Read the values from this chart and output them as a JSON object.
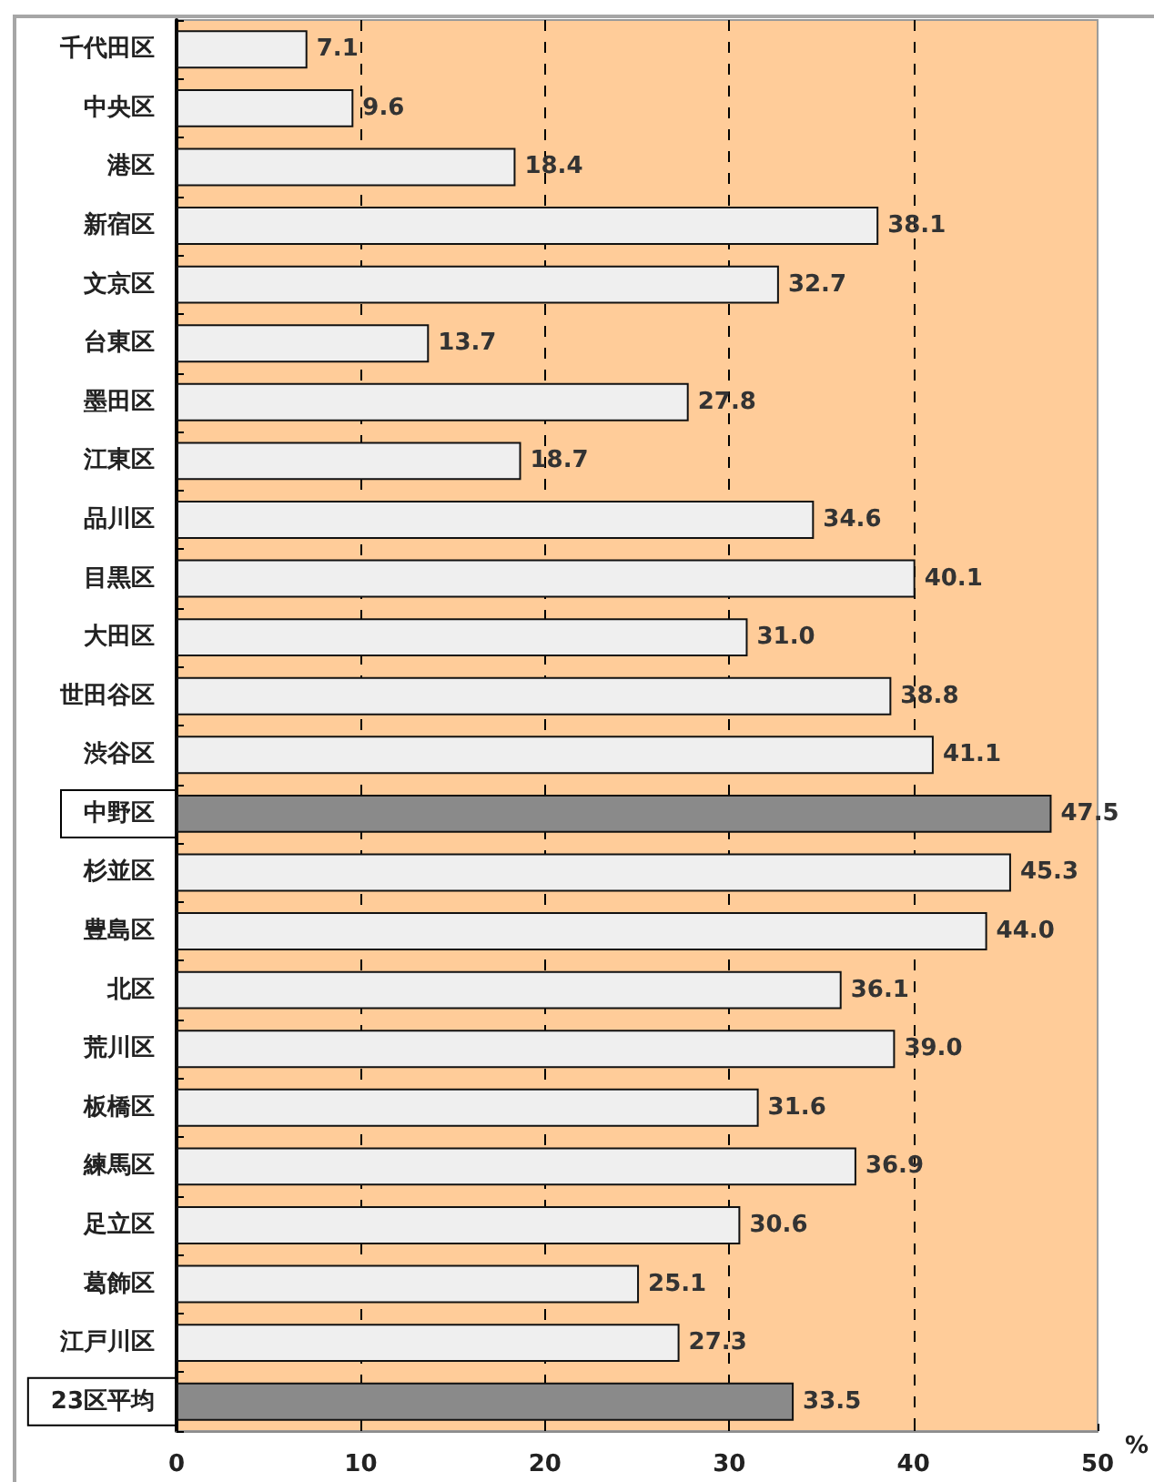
{
  "chart_data": {
    "type": "bar",
    "orientation": "horizontal",
    "categories": [
      "千代田区",
      "中央区",
      "港区",
      "新宿区",
      "文京区",
      "台東区",
      "墨田区",
      "江東区",
      "品川区",
      "目黒区",
      "大田区",
      "世田谷区",
      "渋谷区",
      "中野区",
      "杉並区",
      "豊島区",
      "北区",
      "荒川区",
      "板橋区",
      "練馬区",
      "足立区",
      "葛飾区",
      "江戸川区",
      "23区平均"
    ],
    "values": [
      7.1,
      9.6,
      18.4,
      38.1,
      32.7,
      13.7,
      27.8,
      18.7,
      34.6,
      40.1,
      31.0,
      38.8,
      41.1,
      47.5,
      45.3,
      44.0,
      36.1,
      39.0,
      31.6,
      36.9,
      30.6,
      25.1,
      27.3,
      33.5
    ],
    "colors": [
      "#efefef",
      "#efefef",
      "#efefef",
      "#efefef",
      "#efefef",
      "#efefef",
      "#efefef",
      "#efefef",
      "#efefef",
      "#efefef",
      "#efefef",
      "#efefef",
      "#efefef",
      "#8a8a8a",
      "#efefef",
      "#efefef",
      "#efefef",
      "#efefef",
      "#efefef",
      "#efefef",
      "#efefef",
      "#efefef",
      "#efefef",
      "#8a8a8a"
    ],
    "value_labels": [
      "7.1",
      "9.6",
      "18.4",
      "38.1",
      "32.7",
      "13.7",
      "27.8",
      "18.7",
      "34.6",
      "40.1",
      "31.0",
      "38.8",
      "41.1",
      "47.5",
      "45.3",
      "44.0",
      "36.1",
      "39.0",
      "31.6",
      "36.9",
      "30.6",
      "25.1",
      "27.3",
      "33.5"
    ],
    "xlabel": "%",
    "xlim": [
      0,
      50
    ],
    "xticks": [
      0,
      10,
      20,
      30,
      40,
      50
    ],
    "grid": "x"
  }
}
